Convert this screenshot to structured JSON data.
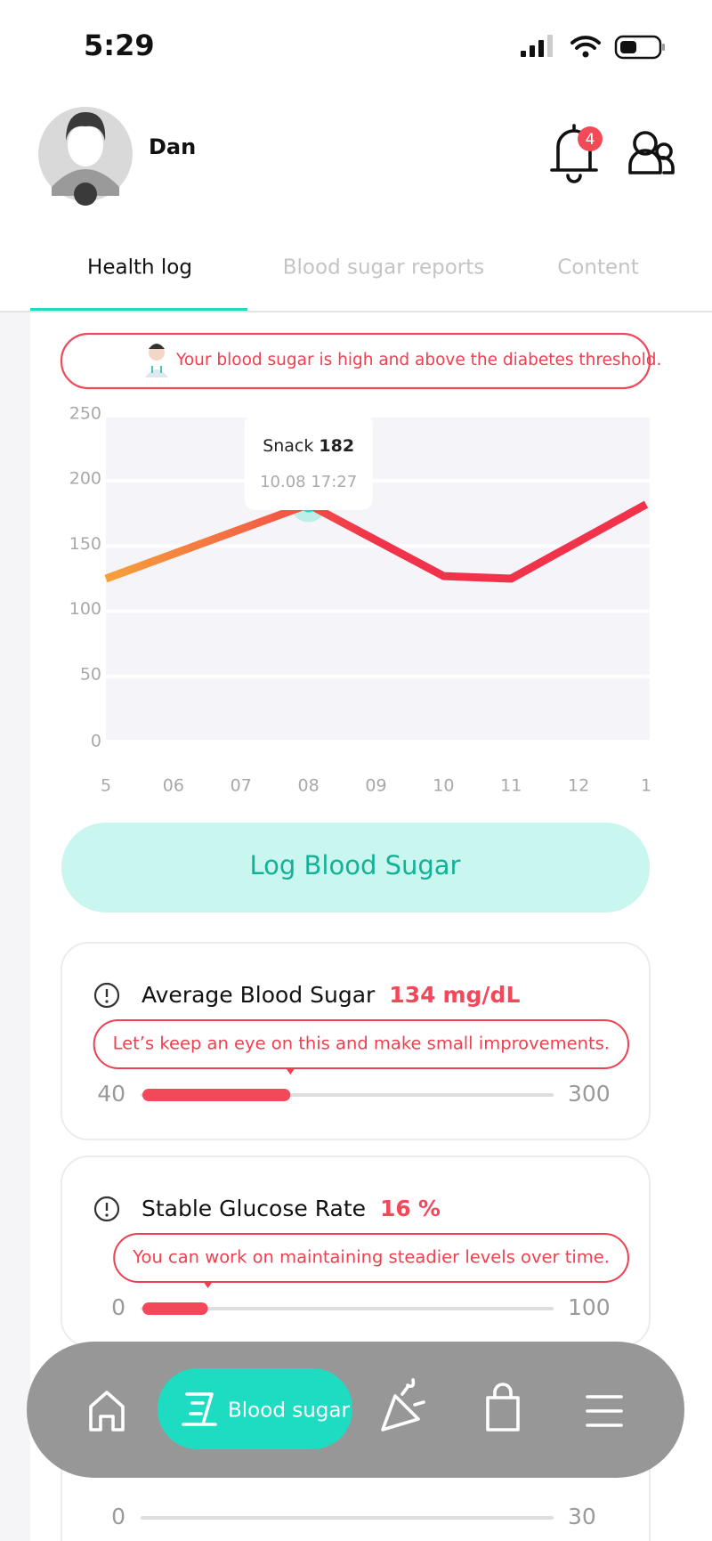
{
  "status_bar": {
    "time": "5:29"
  },
  "header": {
    "user_name": "Dan",
    "notification_count": 4
  },
  "tabs": {
    "items": [
      "Health log",
      "Blood sugar reports",
      "Content"
    ],
    "active": 0
  },
  "alert": {
    "message": "Your blood sugar is high and above the diabetes threshold."
  },
  "chart_data": {
    "type": "line",
    "x": [
      "5",
      "06",
      "07",
      "08",
      "09",
      "10",
      "11",
      "12",
      "1"
    ],
    "values": [
      125,
      null,
      null,
      182,
      null,
      127,
      125,
      null,
      182
    ],
    "connect_gaps": true,
    "color_start": "#f7a13a",
    "color_end": "#f0334a",
    "ylim": [
      0,
      250
    ],
    "yticks": [
      0,
      50,
      100,
      150,
      200,
      250
    ],
    "tooltip": {
      "label": "Snack",
      "time": "10.08 17:27",
      "index": 3
    }
  },
  "primary_button": {
    "label": "Log Blood Sugar"
  },
  "cards": [
    {
      "title": "Average Blood Sugar",
      "value": 134,
      "unit": "mg/dL",
      "message": "Let’s keep an eye on this and make small improvements.",
      "min": 40,
      "max": 300
    },
    {
      "title": "Stable Glucose Rate",
      "value": 16,
      "unit": "%",
      "message": "You can work on maintaining steadier levels over time.",
      "min": 0,
      "max": 100
    },
    {
      "min": 0,
      "max": 30
    }
  ],
  "bottom_nav": {
    "active_label": "Blood sugar"
  }
}
